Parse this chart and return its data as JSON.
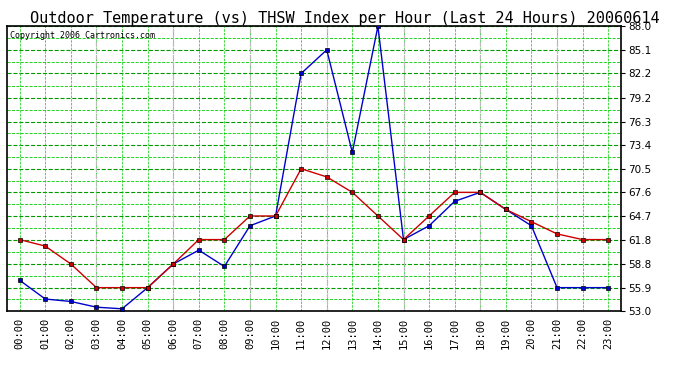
{
  "title": "Outdoor Temperature (vs) THSW Index per Hour (Last 24 Hours) 20060614",
  "copyright": "Copyright 2006 Cartronics.com",
  "hours": [
    "00:00",
    "01:00",
    "02:00",
    "03:00",
    "04:00",
    "05:00",
    "06:00",
    "07:00",
    "08:00",
    "09:00",
    "10:00",
    "11:00",
    "12:00",
    "13:00",
    "14:00",
    "15:00",
    "16:00",
    "17:00",
    "18:00",
    "19:00",
    "20:00",
    "21:00",
    "22:00",
    "23:00"
  ],
  "temp": [
    61.8,
    61.0,
    58.8,
    55.9,
    55.9,
    55.9,
    58.8,
    61.8,
    61.8,
    64.7,
    64.7,
    70.5,
    69.5,
    67.6,
    64.7,
    61.8,
    64.7,
    67.6,
    67.6,
    65.5,
    64.0,
    62.5,
    61.8,
    61.8
  ],
  "thsw": [
    56.8,
    54.5,
    54.2,
    53.5,
    53.3,
    55.9,
    58.8,
    60.5,
    58.5,
    63.5,
    64.7,
    82.2,
    85.1,
    72.5,
    88.0,
    61.8,
    63.5,
    66.5,
    67.6,
    65.5,
    63.5,
    55.9,
    55.9,
    55.9
  ],
  "ylim": [
    53.0,
    88.0
  ],
  "yticks": [
    53.0,
    55.9,
    58.8,
    61.8,
    64.7,
    67.6,
    70.5,
    73.4,
    76.3,
    79.2,
    82.2,
    85.1,
    88.0
  ],
  "temp_color": "#cc0000",
  "thsw_color": "#0000cc",
  "bg_color": "#ffffff",
  "grid_color_minor": "#00cc00",
  "grid_color_major": "#009900",
  "grid_color_vert_dashed": "#aaaaaa",
  "title_fontsize": 11,
  "axis_fontsize": 7.5
}
